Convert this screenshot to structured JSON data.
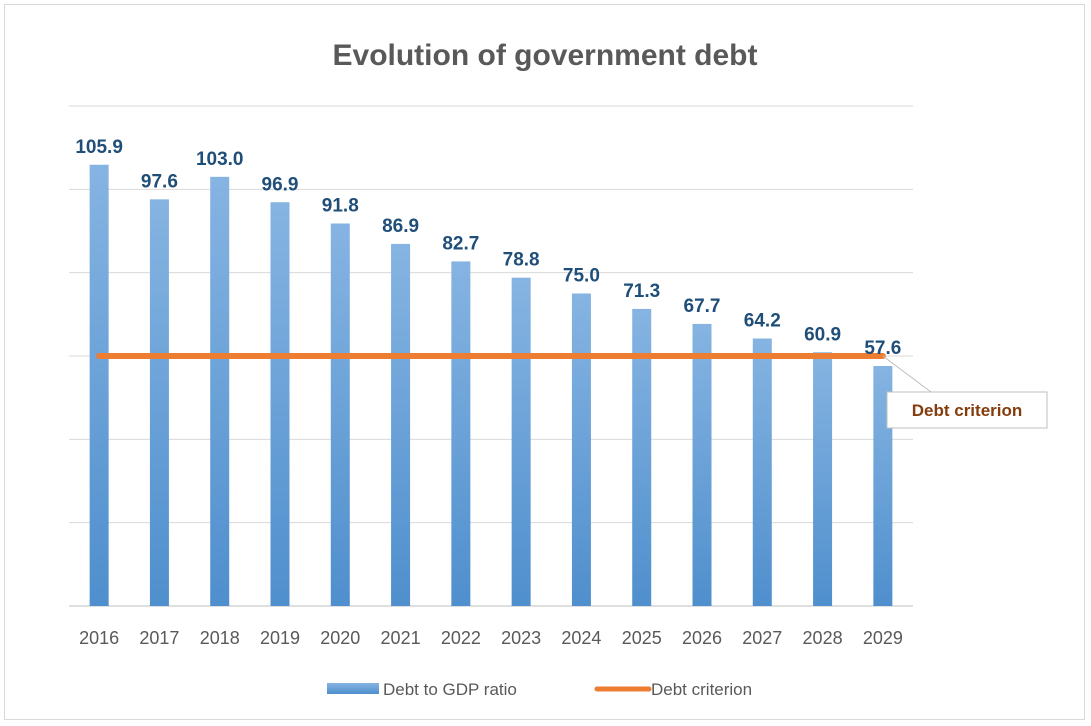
{
  "chart_data": {
    "type": "bar",
    "title": "Evolution of government debt",
    "categories": [
      "2016",
      "2017",
      "2018",
      "2019",
      "2020",
      "2021",
      "2022",
      "2023",
      "2024",
      "2025",
      "2026",
      "2027",
      "2028",
      "2029"
    ],
    "series": [
      {
        "name": "Debt to GDP ratio",
        "kind": "bar",
        "values": [
          105.9,
          97.6,
          103.0,
          96.9,
          91.8,
          86.9,
          82.7,
          78.8,
          75.0,
          71.3,
          67.7,
          64.2,
          60.9,
          57.6
        ],
        "value_labels": [
          "105.9",
          "97.6",
          "103.0",
          "96.9",
          "91.8",
          "86.9",
          "82.7",
          "78.8",
          "75.0",
          "71.3",
          "67.7",
          "64.2",
          "60.9",
          "57.6"
        ],
        "color": "#5b9bd5"
      },
      {
        "name": "Debt criterion",
        "kind": "line",
        "values": [
          60,
          60,
          60,
          60,
          60,
          60,
          60,
          60,
          60,
          60,
          60,
          60,
          60,
          60
        ],
        "color": "#ed7d31"
      }
    ],
    "annotation": "Debt criterion",
    "ylim": [
      0,
      120
    ],
    "grid": true,
    "legend": "bottom"
  }
}
